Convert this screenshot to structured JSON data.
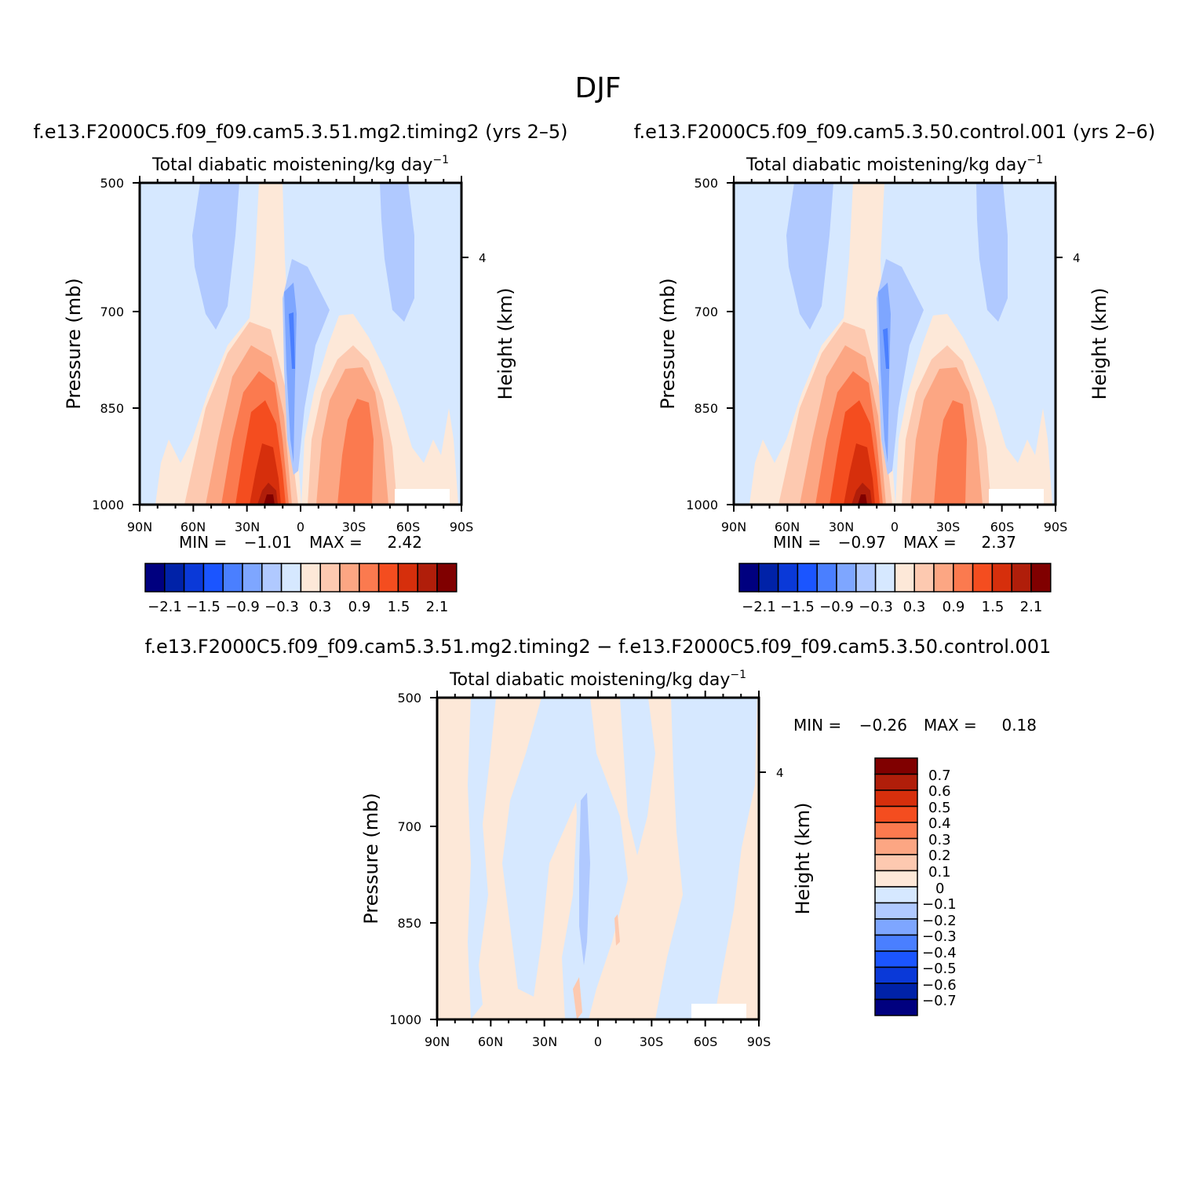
{
  "figure": {
    "title": "DJF"
  },
  "colors": {
    "levels": [
      "#00007f",
      "#0022a8",
      "#0a39d8",
      "#1b55ff",
      "#4a7fff",
      "#7ea6ff",
      "#b0c9ff",
      "#d6e8ff",
      "#fde8d8",
      "#fdc9b0",
      "#fca683",
      "#fb7a4f",
      "#f44d1f",
      "#d62f0c",
      "#b01e0a",
      "#800000"
    ]
  },
  "chart_data": [
    {
      "type": "heatmap",
      "id": "left",
      "header": "f.e13.F2000C5.f09_f09.cam5.3.51.mg2.timing2 (yrs 2–5)",
      "title": "Total diabatic moistening/kg day",
      "title_exp": "−1",
      "ylabel": "Pressure (mb)",
      "ylabel_right": "Height (km)",
      "xlim": [
        90,
        -90
      ],
      "ylim": [
        1000,
        500
      ],
      "xticks": [
        "90N",
        "60N",
        "30N",
        "0",
        "30S",
        "60S",
        "90S"
      ],
      "yticks": [
        "500",
        "700",
        "850",
        "1000"
      ],
      "yticks_right": [
        "4"
      ],
      "min_label": "MIN =",
      "min": "−1.01",
      "max_label": "MAX =",
      "max": "2.42",
      "colorbar_labels": [
        "−2.1",
        "−1.5",
        "−0.9",
        "−0.3",
        "0.3",
        "0.9",
        "1.5",
        "2.1"
      ]
    },
    {
      "type": "heatmap",
      "id": "right",
      "header": "f.e13.F2000C5.f09_f09.cam5.3.50.control.001 (yrs 2–6)",
      "title": "Total diabatic moistening/kg day",
      "title_exp": "−1",
      "ylabel": "Pressure (mb)",
      "ylabel_right": "Height (km)",
      "xlim": [
        90,
        -90
      ],
      "ylim": [
        1000,
        500
      ],
      "xticks": [
        "90N",
        "60N",
        "30N",
        "0",
        "30S",
        "60S",
        "90S"
      ],
      "yticks": [
        "500",
        "700",
        "850",
        "1000"
      ],
      "yticks_right": [
        "4"
      ],
      "min_label": "MIN =",
      "min": "−0.97",
      "max_label": "MAX =",
      "max": "2.37",
      "colorbar_labels": [
        "−2.1",
        "−1.5",
        "−0.9",
        "−0.3",
        "0.3",
        "0.9",
        "1.5",
        "2.1"
      ]
    },
    {
      "type": "heatmap",
      "id": "diff",
      "header": "f.e13.F2000C5.f09_f09.cam5.3.51.mg2.timing2 − f.e13.F2000C5.f09_f09.cam5.3.50.control.001",
      "title": "Total diabatic moistening/kg day",
      "title_exp": "−1",
      "ylabel": "Pressure (mb)",
      "ylabel_right": "Height (km)",
      "xlim": [
        90,
        -90
      ],
      "ylim": [
        1000,
        500
      ],
      "xticks": [
        "90N",
        "60N",
        "30N",
        "0",
        "30S",
        "60S",
        "90S"
      ],
      "yticks": [
        "500",
        "700",
        "850",
        "1000"
      ],
      "yticks_right": [
        "4"
      ],
      "min_label": "MIN =",
      "min": "−0.26",
      "max_label": "MAX =",
      "max": "0.18",
      "colorbar_labels": [
        "0.7",
        "0.6",
        "0.5",
        "0.4",
        "0.3",
        "0.2",
        "0.1",
        "0",
        "−0.1",
        "−0.2",
        "−0.3",
        "−0.4",
        "−0.5",
        "−0.6",
        "−0.7"
      ]
    }
  ]
}
